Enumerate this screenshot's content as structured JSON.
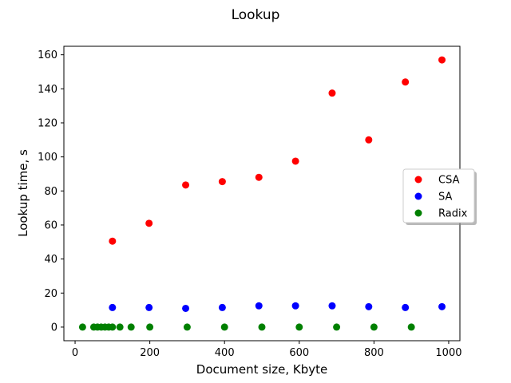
{
  "chart_data": {
    "type": "scatter",
    "title": "Lookup",
    "xlabel": "Document size, Kbyte",
    "ylabel": "Lookup time, s",
    "xlim": [
      -30,
      1030
    ],
    "ylim": [
      -8,
      165
    ],
    "xticks": [
      0,
      200,
      400,
      600,
      800,
      1000
    ],
    "yticks": [
      0,
      20,
      40,
      60,
      80,
      100,
      120,
      140,
      160
    ],
    "grid": false,
    "legend_position": "center-right",
    "series": [
      {
        "name": "CSA",
        "color": "#ff0000",
        "x": [
          100,
          198,
          296,
          394,
          492,
          590,
          688,
          786,
          884,
          982
        ],
        "y": [
          50.5,
          61,
          83.5,
          85.5,
          88,
          97.5,
          137.5,
          110,
          144,
          157
        ]
      },
      {
        "name": "SA",
        "color": "#0000ff",
        "x": [
          100,
          198,
          296,
          394,
          492,
          590,
          688,
          786,
          884,
          982
        ],
        "y": [
          11.5,
          11.5,
          11,
          11.5,
          12.5,
          12.5,
          12.5,
          12,
          11.5,
          12
        ]
      },
      {
        "name": "Radix",
        "color": "#008000",
        "x": [
          20,
          50,
          60,
          70,
          80,
          90,
          100,
          120,
          150,
          200,
          300,
          400,
          500,
          600,
          700,
          800,
          900
        ],
        "y": [
          0,
          0,
          0,
          0,
          0,
          0,
          0,
          0,
          0,
          0,
          0,
          0,
          0,
          0,
          0,
          0,
          0
        ]
      }
    ]
  }
}
